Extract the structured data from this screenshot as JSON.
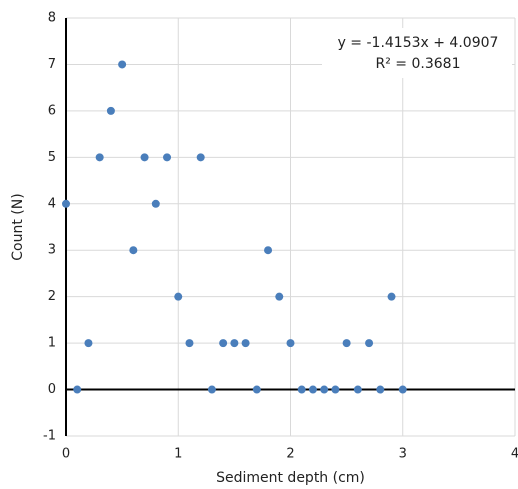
{
  "chart_data": {
    "type": "scatter",
    "x_label": "Sediment depth (cm)",
    "y_label": "Count (N)",
    "annotations": [
      "y = -1.4153x + 4.0907",
      "R² = 0.3681"
    ],
    "x": [
      0,
      0.1,
      0.2,
      0.3,
      0.4,
      0.5,
      0.6,
      0.7,
      0.8,
      0.9,
      1.0,
      1.1,
      1.2,
      1.3,
      1.4,
      1.5,
      1.6,
      1.7,
      1.8,
      1.9,
      2.0,
      2.1,
      2.2,
      2.3,
      2.4,
      2.5,
      2.6,
      2.7,
      2.8,
      2.9,
      3.0
    ],
    "values": [
      4,
      0,
      1,
      5,
      6,
      7,
      3,
      5,
      4,
      5,
      2,
      1,
      5,
      0,
      1,
      1,
      1,
      0,
      3,
      2,
      1,
      0,
      0,
      0,
      0,
      1,
      0,
      1,
      0,
      2,
      0
    ],
    "color": "#4a7ebb",
    "xlim": [
      0,
      4
    ],
    "xticks": [
      0,
      1,
      2,
      3,
      4
    ],
    "ylim": [
      -1,
      8
    ],
    "yticks": [
      -1,
      0,
      1,
      2,
      3,
      4,
      5,
      6,
      7,
      8
    ],
    "grid": true
  }
}
